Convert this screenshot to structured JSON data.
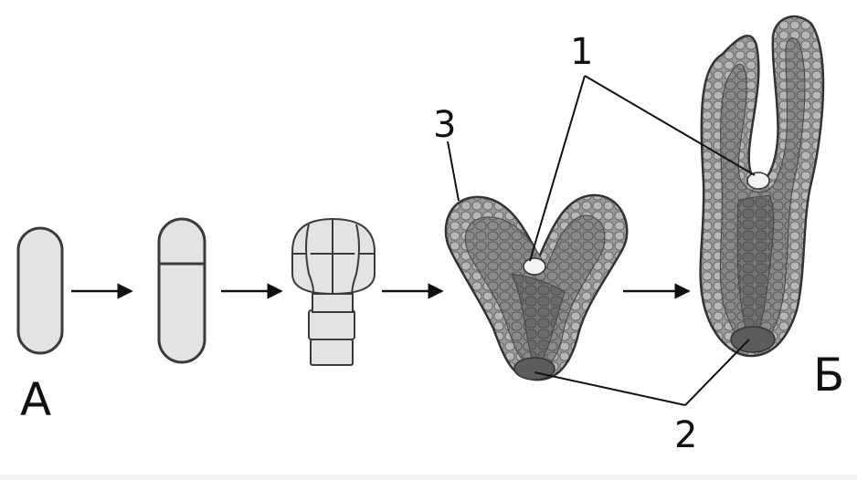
{
  "labels": {
    "stage_start": "А",
    "stage_end": "Б",
    "callout_1": "1",
    "callout_2": "2",
    "callout_3": "3"
  },
  "colors": {
    "cell_dark": "#6f6f6f",
    "cell_mid": "#8c8c8c",
    "cell_light": "#b9b9b9",
    "cell_pale": "#e4e4e4",
    "outline": "#3a3a3a"
  },
  "stages": [
    "zygote",
    "two-cell",
    "proembryo",
    "heart-stage",
    "torpedo-stage"
  ]
}
